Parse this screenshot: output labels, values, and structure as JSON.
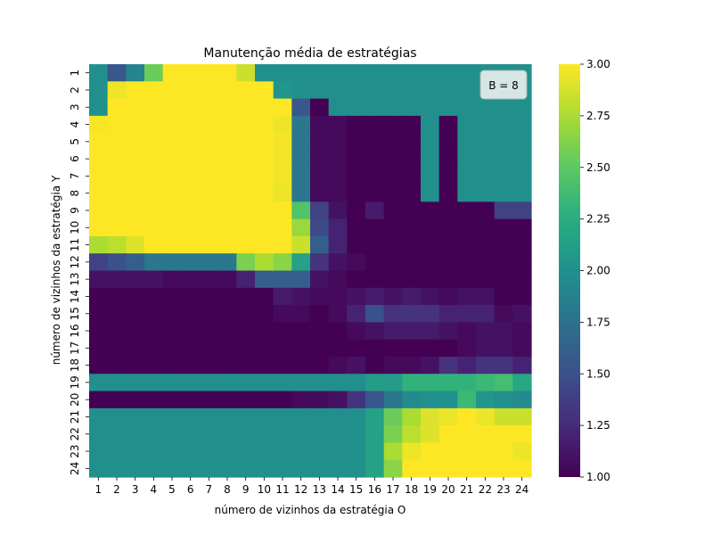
{
  "chart_data": {
    "type": "heatmap",
    "title": "Manutenção média de estratégias",
    "xlabel": "número de vizinhos da estratégia O",
    "ylabel": "número de vizinhos da estratégia Y",
    "x_categories": [
      "1",
      "2",
      "3",
      "4",
      "5",
      "6",
      "7",
      "8",
      "9",
      "10",
      "11",
      "12",
      "13",
      "14",
      "15",
      "16",
      "17",
      "18",
      "19",
      "20",
      "21",
      "22",
      "23",
      "24"
    ],
    "y_categories": [
      "1",
      "2",
      "3",
      "4",
      "5",
      "6",
      "7",
      "8",
      "9",
      "10",
      "11",
      "12",
      "13",
      "14",
      "15",
      "16",
      "17",
      "18",
      "19",
      "20",
      "21",
      "22",
      "23",
      "24"
    ],
    "annotation": "B = 8",
    "colorbar": {
      "min": 1.0,
      "max": 3.0,
      "ticks": [
        "1.00",
        "1.25",
        "1.50",
        "1.75",
        "2.00",
        "2.25",
        "2.50",
        "2.75",
        "3.00"
      ],
      "colormap": "viridis"
    },
    "values": [
      [
        2,
        1.55,
        1.9,
        2.55,
        3,
        3,
        3,
        3,
        2.85,
        2,
        2,
        2,
        2,
        2,
        2,
        2,
        2,
        2,
        2,
        2,
        2,
        2,
        2,
        2
      ],
      [
        2,
        2.95,
        3,
        3,
        3,
        3,
        3,
        3,
        3,
        3,
        2.05,
        2,
        2,
        2,
        2,
        2,
        2,
        2,
        2,
        2,
        2,
        2,
        2,
        2
      ],
      [
        2,
        3,
        3,
        3,
        3,
        3,
        3,
        3,
        3,
        3,
        3,
        1.55,
        1,
        2,
        2,
        2,
        2,
        2,
        2,
        2,
        2,
        2,
        2,
        2
      ],
      [
        2.98,
        3,
        3,
        3,
        3,
        3,
        3,
        3,
        3,
        3,
        2.95,
        1.8,
        1.05,
        1.05,
        1,
        1,
        1,
        1,
        2,
        1,
        2,
        2,
        2,
        2
      ],
      [
        3,
        3,
        3,
        3,
        3,
        3,
        3,
        3,
        3,
        3,
        2.97,
        1.8,
        1.05,
        1.05,
        1,
        1,
        1,
        1,
        2,
        1,
        2,
        2,
        2,
        2
      ],
      [
        3,
        3,
        3,
        3,
        3,
        3,
        3,
        3,
        3,
        3,
        2.97,
        1.8,
        1.05,
        1.05,
        1,
        1,
        1,
        1,
        2,
        1,
        2,
        2,
        2,
        2
      ],
      [
        3,
        3,
        3,
        3,
        3,
        3,
        3,
        3,
        3,
        3,
        2.97,
        1.8,
        1.05,
        1.05,
        1,
        1,
        1,
        1,
        2,
        1,
        2,
        2,
        2,
        2
      ],
      [
        3,
        3,
        3,
        3,
        3,
        3,
        3,
        3,
        3,
        3,
        2.95,
        1.8,
        1.05,
        1.05,
        1,
        1,
        1,
        1,
        2,
        1,
        2,
        2,
        2,
        2
      ],
      [
        3,
        3,
        3,
        3,
        3,
        3,
        3,
        3,
        3,
        3,
        3,
        2.45,
        1.4,
        1.1,
        1,
        1.15,
        1,
        1,
        1,
        1,
        1,
        1,
        1.4,
        1.4
      ],
      [
        3,
        3,
        3,
        3,
        3,
        3,
        3,
        3,
        3,
        3,
        3,
        2.7,
        1.45,
        1.2,
        1,
        1,
        1,
        1,
        1,
        1,
        1,
        1,
        1,
        1
      ],
      [
        2.75,
        2.8,
        2.9,
        3,
        3,
        3,
        3,
        3,
        3,
        3,
        3,
        2.85,
        1.6,
        1.2,
        1,
        1,
        1,
        1,
        1,
        1,
        1,
        1,
        1,
        1
      ],
      [
        1.4,
        1.5,
        1.6,
        1.8,
        1.8,
        1.8,
        1.8,
        1.8,
        2.6,
        2.75,
        2.65,
        2.15,
        1.3,
        1.1,
        1.05,
        1,
        1,
        1,
        1,
        1,
        1,
        1,
        1,
        1
      ],
      [
        1.1,
        1.1,
        1.1,
        1.1,
        1.05,
        1.05,
        1.05,
        1.05,
        1.2,
        1.6,
        1.6,
        1.6,
        1.1,
        1.05,
        1,
        1,
        1,
        1,
        1,
        1,
        1,
        1,
        1,
        1
      ],
      [
        1,
        1,
        1,
        1,
        1,
        1,
        1,
        1,
        1,
        1,
        1.15,
        1.1,
        1.05,
        1.05,
        1.1,
        1.15,
        1.1,
        1.15,
        1.1,
        1.05,
        1.1,
        1.1,
        1,
        1
      ],
      [
        1,
        1,
        1,
        1,
        1,
        1,
        1,
        1,
        1,
        1,
        1.05,
        1.05,
        1,
        1.05,
        1.2,
        1.5,
        1.3,
        1.3,
        1.3,
        1.2,
        1.2,
        1.2,
        1.05,
        1.1
      ],
      [
        1,
        1,
        1,
        1,
        1,
        1,
        1,
        1,
        1,
        1,
        1,
        1,
        1,
        1,
        1.05,
        1.1,
        1.15,
        1.15,
        1.15,
        1.1,
        1.05,
        1.1,
        1.1,
        1.05
      ],
      [
        1,
        1,
        1,
        1,
        1,
        1,
        1,
        1,
        1,
        1,
        1,
        1,
        1,
        1,
        1,
        1,
        1,
        1,
        1,
        1,
        1.05,
        1.1,
        1.1,
        1.05
      ],
      [
        1,
        1,
        1,
        1,
        1,
        1,
        1,
        1,
        1,
        1,
        1,
        1,
        1,
        1.05,
        1.1,
        1,
        1.05,
        1.05,
        1.1,
        1.3,
        1.2,
        1.3,
        1.3,
        1.2
      ],
      [
        2,
        2,
        2,
        2,
        2,
        2,
        2,
        2,
        2,
        2,
        2,
        2,
        2,
        2,
        2,
        2.1,
        2.1,
        2.3,
        2.3,
        2.3,
        2.3,
        2.35,
        2.4,
        2.2
      ],
      [
        1,
        1,
        1,
        1,
        1,
        1,
        1,
        1,
        1,
        1,
        1,
        1.05,
        1.05,
        1.1,
        1.3,
        1.55,
        1.8,
        1.95,
        2,
        2,
        2.35,
        2.05,
        2,
        1.95
      ],
      [
        2,
        2,
        2,
        2,
        2,
        2,
        2,
        2,
        2,
        2,
        2,
        2,
        2,
        2,
        2,
        2.15,
        2.55,
        2.75,
        2.9,
        2.95,
        3,
        2.95,
        2.85,
        2.85
      ],
      [
        2,
        2,
        2,
        2,
        2,
        2,
        2,
        2,
        2,
        2,
        2,
        2,
        2,
        2,
        2,
        2.15,
        2.6,
        2.8,
        2.9,
        3,
        3,
        3,
        3,
        3
      ],
      [
        2,
        2,
        2,
        2,
        2,
        2,
        2,
        2,
        2,
        2,
        2,
        2,
        2,
        2,
        2,
        2.15,
        2.75,
        2.95,
        3,
        3,
        3,
        3,
        3,
        2.95
      ],
      [
        2,
        2,
        2,
        2,
        2,
        2,
        2,
        2,
        2,
        2,
        2,
        2,
        2,
        2,
        2,
        2.15,
        2.65,
        3,
        3,
        3,
        3,
        3,
        3,
        3
      ]
    ]
  }
}
